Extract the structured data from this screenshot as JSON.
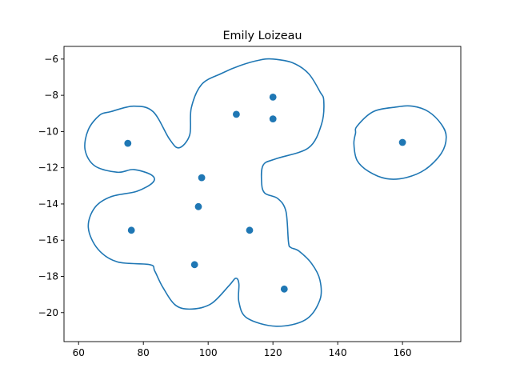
{
  "chart_data": {
    "type": "scatter",
    "title": "Emily Loizeau",
    "xlabel": "",
    "ylabel": "",
    "xlim": [
      55.5,
      178
    ],
    "ylim": [
      -21.6,
      -5.3
    ],
    "xticks": [
      60,
      80,
      100,
      120,
      140,
      160
    ],
    "yticks": [
      -20,
      -18,
      -16,
      -14,
      -12,
      -10,
      -8,
      -6
    ],
    "grid": false,
    "legend": "none",
    "color": "#1f77b4",
    "points": [
      {
        "x": 75.2,
        "y": -10.65
      },
      {
        "x": 76.3,
        "y": -15.45
      },
      {
        "x": 95.8,
        "y": -17.35
      },
      {
        "x": 97.0,
        "y": -14.15
      },
      {
        "x": 98.0,
        "y": -12.55
      },
      {
        "x": 108.7,
        "y": -9.05
      },
      {
        "x": 112.8,
        "y": -15.45
      },
      {
        "x": 120.0,
        "y": -8.1
      },
      {
        "x": 120.0,
        "y": -9.3
      },
      {
        "x": 123.5,
        "y": -18.7
      },
      {
        "x": 160.0,
        "y": -10.6
      }
    ],
    "contours": [
      [
        [
          70,
          -8.9
        ],
        [
          77,
          -8.6
        ],
        [
          83,
          -8.9
        ],
        [
          88,
          -10.4
        ],
        [
          91,
          -10.9
        ],
        [
          94.3,
          -10.2
        ],
        [
          94.8,
          -8.7
        ],
        [
          98,
          -7.4
        ],
        [
          104,
          -6.8
        ],
        [
          110,
          -6.35
        ],
        [
          116,
          -6.05
        ],
        [
          120,
          -6.0
        ],
        [
          126,
          -6.2
        ],
        [
          131,
          -6.8
        ],
        [
          134.5,
          -7.8
        ],
        [
          135.7,
          -8.3
        ],
        [
          135,
          -9.6
        ],
        [
          131,
          -10.9
        ],
        [
          121,
          -11.5
        ],
        [
          117,
          -11.85
        ],
        [
          116.5,
          -12.8
        ],
        [
          117.5,
          -13.4
        ],
        [
          121.5,
          -13.7
        ],
        [
          124,
          -14.4
        ],
        [
          124.8,
          -16.1
        ],
        [
          125.5,
          -16.4
        ],
        [
          128,
          -16.6
        ],
        [
          132,
          -17.3
        ],
        [
          134.5,
          -18.2
        ],
        [
          134.5,
          -19.3
        ],
        [
          130,
          -20.4
        ],
        [
          121,
          -20.75
        ],
        [
          112,
          -20.3
        ],
        [
          109.5,
          -19.4
        ],
        [
          109.5,
          -18.4
        ],
        [
          108.5,
          -18.1
        ],
        [
          106.5,
          -18.5
        ],
        [
          101,
          -19.5
        ],
        [
          95,
          -19.8
        ],
        [
          90,
          -19.6
        ],
        [
          86,
          -18.6
        ],
        [
          83.5,
          -17.7
        ],
        [
          82,
          -17.35
        ],
        [
          72,
          -17.2
        ],
        [
          66,
          -16.5
        ],
        [
          63,
          -15.3
        ],
        [
          65,
          -14.2
        ],
        [
          70,
          -13.6
        ],
        [
          78,
          -13.3
        ],
        [
          83,
          -12.8
        ],
        [
          82.5,
          -12.4
        ],
        [
          77,
          -12.1
        ],
        [
          72,
          -12.25
        ],
        [
          65,
          -11.9
        ],
        [
          62,
          -11.0
        ],
        [
          63,
          -9.9
        ],
        [
          66.5,
          -9.1
        ]
      ],
      [
        [
          146,
          -9.7
        ],
        [
          151,
          -8.9
        ],
        [
          158,
          -8.65
        ],
        [
          163,
          -8.6
        ],
        [
          168,
          -8.9
        ],
        [
          172,
          -9.6
        ],
        [
          173.5,
          -10.3
        ],
        [
          172,
          -11.2
        ],
        [
          167,
          -12.1
        ],
        [
          161,
          -12.55
        ],
        [
          155,
          -12.6
        ],
        [
          149.5,
          -12.2
        ],
        [
          146,
          -11.6
        ],
        [
          145,
          -10.7
        ],
        [
          145.5,
          -10.1
        ]
      ]
    ]
  }
}
